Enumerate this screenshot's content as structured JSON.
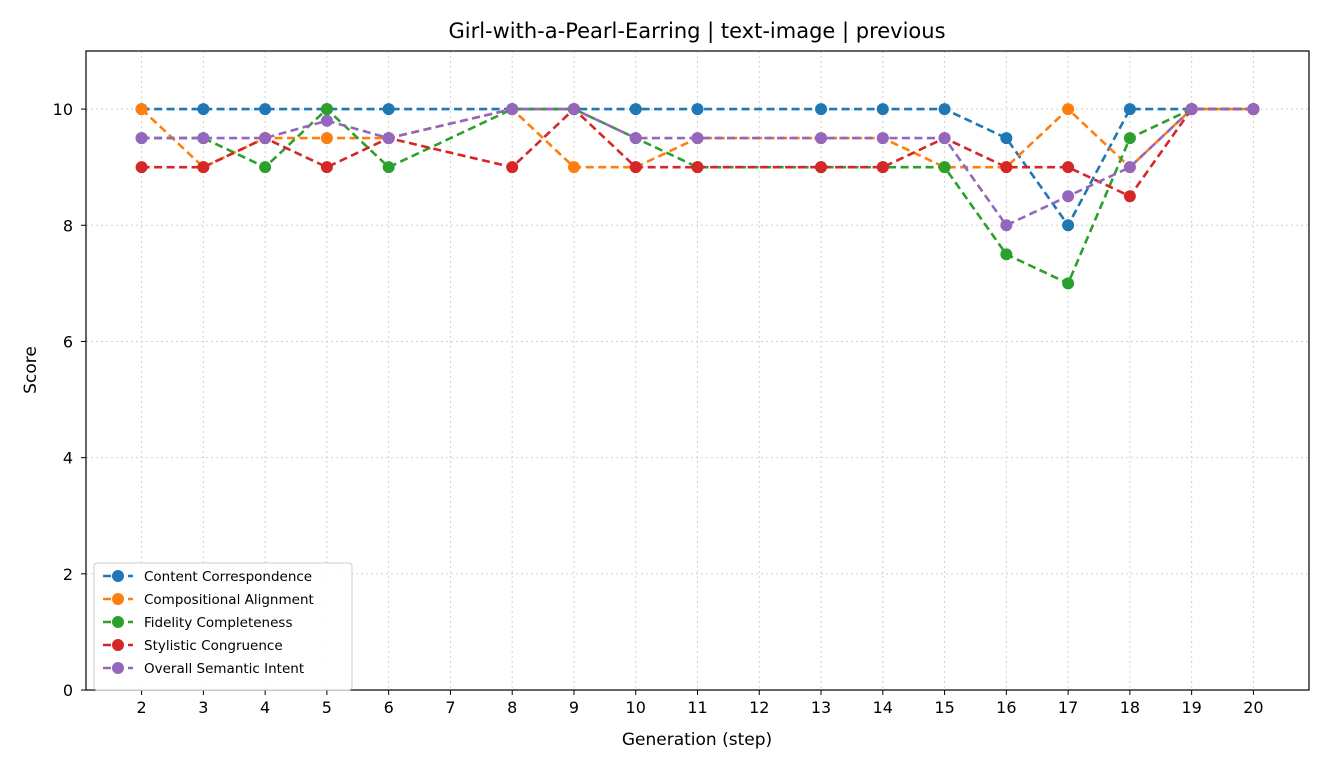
{
  "chart_data": {
    "type": "line",
    "title": "Girl-with-a-Pearl-Earring | text-image | previous",
    "xlabel": "Generation (step)",
    "ylabel": "Score",
    "x_ticks": [
      2,
      3,
      4,
      5,
      6,
      7,
      8,
      9,
      10,
      11,
      12,
      13,
      14,
      15,
      16,
      17,
      18,
      19,
      20
    ],
    "y_ticks": [
      0,
      2,
      4,
      6,
      8,
      10
    ],
    "xlim": [
      1.1,
      20.9
    ],
    "ylim": [
      0,
      11
    ],
    "grid": true,
    "line_style": "dashed",
    "marker": "circle",
    "legend_position": "lower-left",
    "series": [
      {
        "name": "Content Correspondence",
        "color": "#1f77b4",
        "x": [
          2,
          3,
          4,
          5,
          6,
          8,
          9,
          10,
          11,
          13,
          14,
          15,
          16,
          17,
          18,
          19,
          20
        ],
        "y": [
          10,
          10,
          10,
          10,
          10,
          10,
          10,
          10,
          10,
          10,
          10,
          10,
          9.5,
          8,
          10,
          10,
          10
        ]
      },
      {
        "name": "Compositional Alignment",
        "color": "#ff7f0e",
        "x": [
          2,
          3,
          4,
          5,
          6,
          8,
          9,
          10,
          11,
          13,
          14,
          15,
          16,
          17,
          18,
          19,
          20
        ],
        "y": [
          10,
          9,
          9.5,
          9.5,
          9.5,
          10,
          9,
          9,
          9.5,
          9.5,
          9.5,
          9,
          9,
          10,
          9,
          10,
          10
        ]
      },
      {
        "name": "Fidelity Completeness",
        "color": "#2ca02c",
        "x": [
          2,
          3,
          4,
          5,
          6,
          8,
          9,
          10,
          11,
          13,
          14,
          15,
          16,
          17,
          18,
          19,
          20
        ],
        "y": [
          9.5,
          9.5,
          9,
          10,
          9,
          10,
          10,
          9.5,
          9,
          9,
          9,
          9,
          7.5,
          7,
          9.5,
          10,
          10
        ]
      },
      {
        "name": "Stylistic Congruence",
        "color": "#d62728",
        "x": [
          2,
          3,
          4,
          5,
          6,
          8,
          9,
          10,
          11,
          13,
          14,
          15,
          16,
          17,
          18,
          19,
          20
        ],
        "y": [
          9,
          9,
          9.5,
          9,
          9.5,
          9,
          10,
          9,
          9,
          9,
          9,
          9.5,
          9,
          9,
          8.5,
          10,
          10
        ]
      },
      {
        "name": "Overall Semantic Intent",
        "color": "#9467bd",
        "x": [
          2,
          3,
          4,
          5,
          6,
          8,
          9,
          10,
          11,
          13,
          14,
          15,
          16,
          17,
          18,
          19,
          20
        ],
        "y": [
          9.5,
          9.5,
          9.5,
          9.8,
          9.5,
          10,
          10,
          9.5,
          9.5,
          9.5,
          9.5,
          9.5,
          8,
          8.5,
          9,
          10,
          10
        ]
      }
    ]
  }
}
